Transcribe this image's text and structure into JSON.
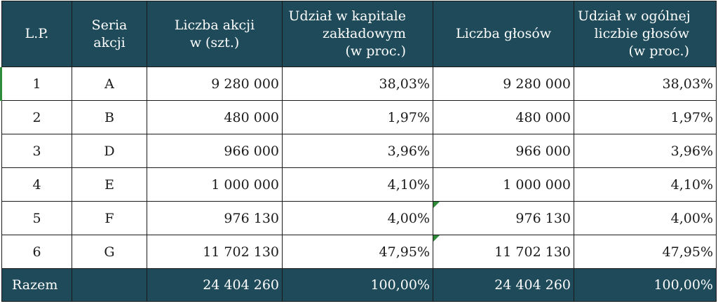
{
  "table": {
    "headers": [
      [
        "L.P."
      ],
      [
        "Seria",
        "akcji"
      ],
      [
        "Liczba akcji",
        "w (szt.)"
      ],
      [
        "Udział w kapitale",
        "zakładowym",
        "(w proc.)"
      ],
      [
        "Liczba głosów"
      ],
      [
        "Udział w ogólnej",
        "liczbie głosów",
        "(w proc.)"
      ]
    ],
    "rows": [
      [
        "1",
        "A",
        "9 280 000",
        "38,03%",
        "9 280 000",
        "38,03%"
      ],
      [
        "2",
        "B",
        "480 000",
        "1,97%",
        "480 000",
        "1,97%"
      ],
      [
        "3",
        "D",
        "966 000",
        "3,96%",
        "966 000",
        "3,96%"
      ],
      [
        "4",
        "E",
        "1 000 000",
        "4,10%",
        "1 000 000",
        "4,10%"
      ],
      [
        "5",
        "F",
        "976 130",
        "4,00%",
        "976 130",
        "4,00%"
      ],
      [
        "6",
        "G",
        "11 702 130",
        "47,95%",
        "11 702 130",
        "47,95%"
      ]
    ],
    "total": [
      "Razem",
      "",
      "24 404 260",
      "100,00%",
      "24 404 260",
      "100,00%"
    ]
  },
  "colors": {
    "header_bg": "#1e4a59",
    "header_text": "#ffffff",
    "grid_border": "#1a1a1a",
    "cell_marker": "#2e8b3a"
  }
}
